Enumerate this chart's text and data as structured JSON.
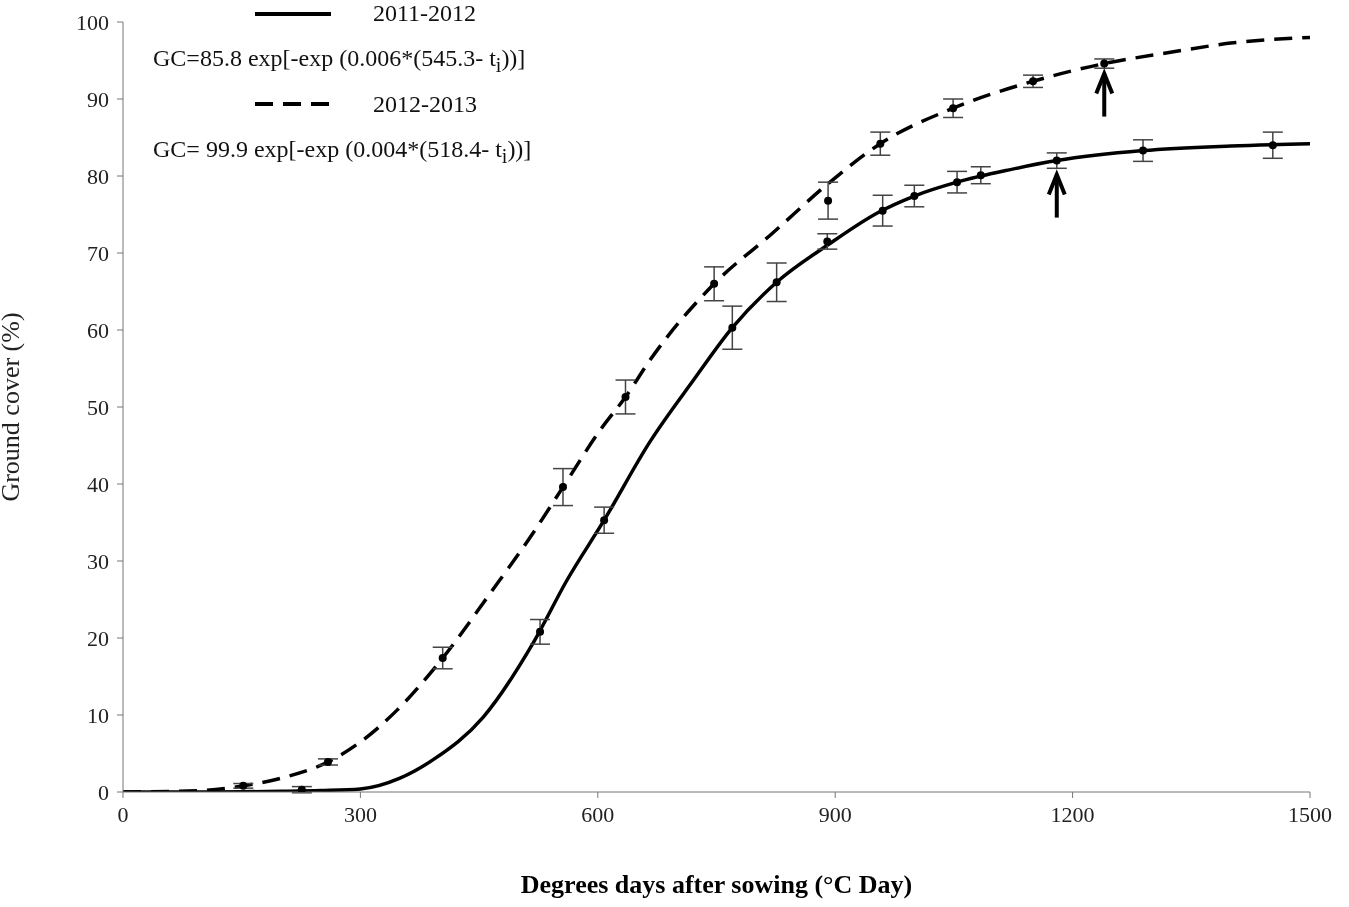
{
  "chart_data": {
    "type": "line",
    "xlabel": "Degrees days after sowing (°C Day)",
    "ylabel": "Ground cover (%)",
    "xlim": [
      0,
      1500
    ],
    "xticks": [
      0,
      300,
      600,
      900,
      1200,
      1500
    ],
    "ylim": [
      0,
      100
    ],
    "yticks": [
      0,
      10,
      20,
      30,
      40,
      50,
      60,
      70,
      80,
      90,
      100
    ],
    "grid": false,
    "legend": "top left",
    "annotations": [
      "GC=85.8 exp[-exp (0.006*(545.3- t$_{i}$))]",
      "GC= 99.9 exp[-exp (0.004*(518.4- t$_{i}$))]"
    ],
    "series": [
      {
        "name": "2011-2012",
        "line_style": "solid",
        "marker": "none",
        "color": "#000000",
        "x": [
          0,
          100,
          200,
          250,
          300,
          350,
          392,
          455,
          518,
          561,
          608,
          666,
          721,
          770,
          826,
          890,
          955,
          1000,
          1054,
          1120,
          1180,
          1289,
          1400,
          1500
        ],
        "values": [
          0,
          0,
          0.1,
          0.2,
          0.4,
          1.8,
          4.2,
          9.7,
          19.3,
          27.5,
          35.3,
          45.5,
          53.5,
          60.3,
          66.2,
          71,
          75.3,
          77.4,
          79.2,
          80.8,
          82,
          83.3,
          83.9,
          84.2
        ]
      },
      {
        "name": "2012-2013",
        "line_style": "dashed",
        "marker": "none",
        "color": "#000000",
        "x": [
          0,
          100,
          152,
          200,
          259,
          300,
          346,
          404,
          464,
          518,
          556,
          603,
          635,
          666,
          747,
          820,
          891,
          957,
          1049,
          1150,
          1240,
          1320,
          1403,
          1500
        ],
        "values": [
          0,
          0.2,
          0.8,
          1.8,
          3.9,
          6.5,
          10.6,
          17.4,
          25.8,
          33.6,
          39.6,
          47,
          51.3,
          56.1,
          66,
          72.5,
          79,
          84.2,
          88.8,
          92.3,
          94.6,
          96,
          97.3,
          98
        ]
      },
      {
        "type": "scatter",
        "marker": "circle",
        "color": "#000000",
        "x": [
          226,
          527,
          608,
          770,
          826,
          890,
          960,
          1000,
          1054,
          1084,
          1180,
          1289,
          1453
        ],
        "values": [
          0.3,
          20.8,
          35.3,
          60.3,
          66.2,
          71.5,
          75.5,
          77.4,
          79.2,
          80.1,
          82,
          83.3,
          84
        ],
        "errors": [
          0.4,
          1.6,
          1.7,
          2.8,
          2.5,
          1,
          2,
          1.4,
          1.4,
          1.1,
          1,
          1.4,
          1.7
        ]
      },
      {
        "type": "scatter",
        "marker": "circle",
        "color": "#000000",
        "x": [
          152,
          259,
          404,
          556,
          635,
          747,
          891,
          957,
          1049,
          1150,
          1240
        ],
        "values": [
          0.8,
          3.9,
          17.4,
          39.6,
          51.3,
          66,
          76.8,
          84.2,
          88.8,
          92.3,
          94.6
        ],
        "errors": [
          0.3,
          0.4,
          1.4,
          2.4,
          2.2,
          2.2,
          2.4,
          1.5,
          1.2,
          0.8,
          0.6
        ]
      }
    ]
  }
}
